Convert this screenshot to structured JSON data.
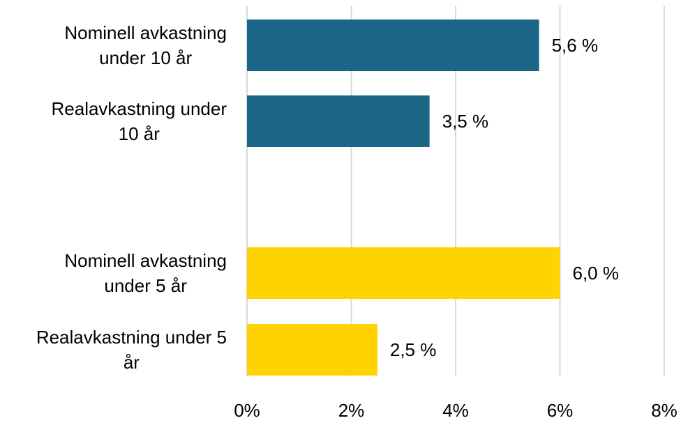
{
  "chart_data": {
    "type": "bar",
    "orientation": "horizontal",
    "categories": [
      [
        "Nominell avkastning",
        "under 10 år"
      ],
      [
        "Realavkastning under",
        "10 år"
      ],
      [
        "Nominell avkastning",
        "under 5 år"
      ],
      [
        "Realavkastning under 5",
        "år"
      ]
    ],
    "values": [
      5.6,
      3.5,
      6.0,
      2.5
    ],
    "data_labels": [
      "5,6 %",
      "3,5 %",
      "6,0 %",
      "2,5 %"
    ],
    "bar_colors": [
      "#1b6586",
      "#1b6586",
      "#ffd200",
      "#ffd200"
    ],
    "xlim": [
      0,
      8
    ],
    "xticks": [
      0,
      2,
      4,
      6,
      8
    ],
    "xtick_labels": [
      "0%",
      "2%",
      "4%",
      "6%",
      "8%"
    ],
    "grid": true,
    "gridline_color": "#d9d9d9",
    "title": "",
    "xlabel": "",
    "ylabel": ""
  }
}
